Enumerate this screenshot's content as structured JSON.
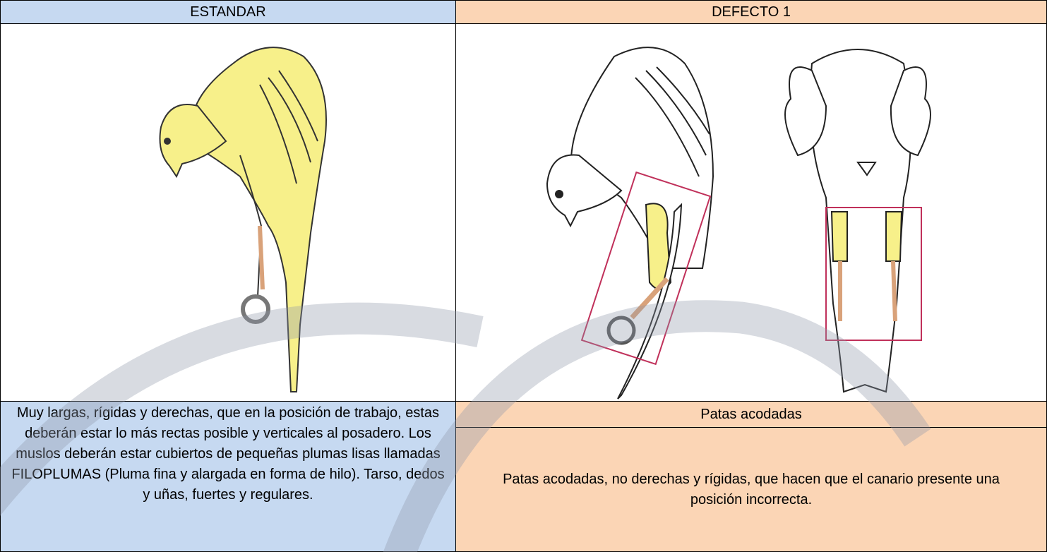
{
  "header": {
    "left": "ESTANDAR",
    "right": "DEFECTO 1"
  },
  "standard": {
    "description": "Muy largas, rígidas y derechas, que en la posición de trabajo, estas deberán estar lo más rectas posible y verticales al posadero. Los muslos deberán estar cubiertos de pequeñas plumas lisas llamadas FILOPLUMAS (Pluma fina y alargada en forma de hilo). Tarso, dedos y uñas, fuertes y regulares."
  },
  "defect": {
    "title": "Patas acodadas",
    "description": "Patas acodadas, no derechas y rígidas, que hacen que el canario presente una posición incorrecta."
  }
}
